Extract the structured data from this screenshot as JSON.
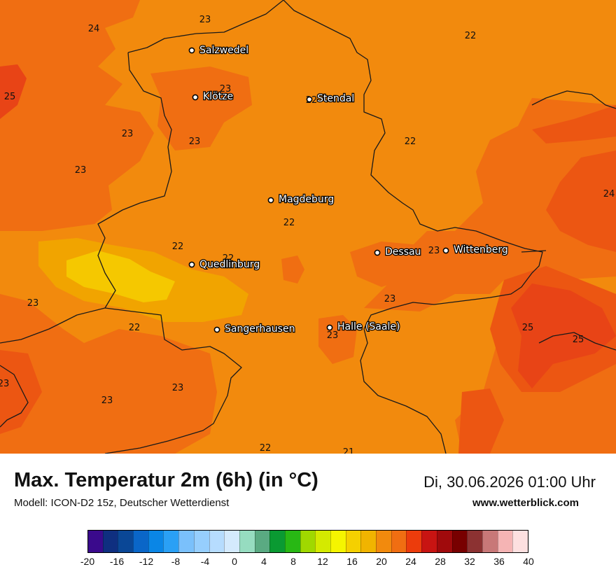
{
  "map": {
    "colors": {
      "t20": "#f5c800",
      "t21": "#f1a400",
      "t22": "#f28a0d",
      "t23": "#f06e12",
      "t24": "#ec5612",
      "t25": "#e84416",
      "border": "#1a1a1a",
      "city_dot": "#ffffff"
    },
    "cities": [
      {
        "name": "Salzwedel"
      },
      {
        "name": "Klötze"
      },
      {
        "name": "Stendal"
      },
      {
        "name": "Magdeburg"
      },
      {
        "name": "Dessau"
      },
      {
        "name": "Wittenberg"
      },
      {
        "name": "Quedlinburg"
      },
      {
        "name": "Sangerhausen"
      },
      {
        "name": "Halle (Saale)"
      }
    ],
    "temperature_labels": [
      "23",
      "24",
      "22",
      "25",
      "23",
      "23",
      "23",
      "22",
      "23",
      "24",
      "22",
      "22",
      "22",
      "23",
      "23",
      "22",
      "23",
      "25",
      "25",
      "23",
      "23",
      "23",
      "22",
      "21",
      "22",
      "23"
    ]
  },
  "header": {
    "title": "Max. Temperatur 2m (6h) (in °C)",
    "subtitle": "Modell: ICON-D2 15z, Deutscher Wetterdienst",
    "datetime": "Di, 30.06.2026 01:00 Uhr",
    "website": "www.wetterblick.com"
  },
  "legend": {
    "swatches": [
      "#3a0a8c",
      "#0f2f80",
      "#0a4796",
      "#0a66c8",
      "#0a86e6",
      "#2aa0f5",
      "#7ac0fb",
      "#96cefd",
      "#b6dcfe",
      "#d4eafd",
      "#96dcc0",
      "#5aaa82",
      "#0a9a32",
      "#28b814",
      "#a0d800",
      "#d4ea00",
      "#f5f500",
      "#f5d000",
      "#f1b400",
      "#f28a0d",
      "#f06e12",
      "#ec3c0c",
      "#c81412",
      "#a00a0c",
      "#780000",
      "#8c3232",
      "#c87878",
      "#f5b4b4",
      "#fde0e0"
    ],
    "ticks": [
      "-20",
      "-16",
      "-12",
      "-8",
      "-4",
      "0",
      "4",
      "8",
      "12",
      "16",
      "20",
      "24",
      "28",
      "32",
      "36",
      "40"
    ]
  }
}
